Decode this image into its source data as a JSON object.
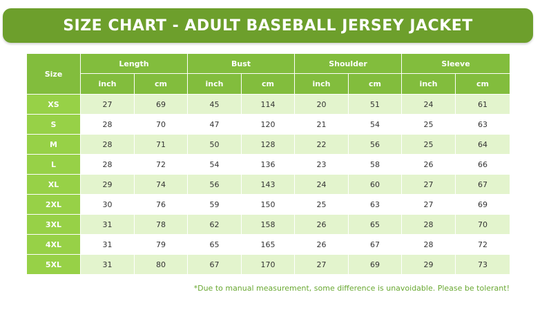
{
  "title": "SIZE CHART - ADULT BASEBALL JERSEY JACKET",
  "colors": {
    "banner": "#6d9f2c",
    "header": "#82bd3d",
    "size_column": "#97d147",
    "row_alt": "#e3f4cd",
    "note": "#69a832"
  },
  "table": {
    "size_header": "Size",
    "groups": [
      "Length",
      "Bust",
      "Shoulder",
      "Sleeve"
    ],
    "units": [
      "inch",
      "cm",
      "inch",
      "cm",
      "inch",
      "cm",
      "inch",
      "cm"
    ],
    "rows": [
      {
        "size": "XS",
        "values": [
          "27",
          "69",
          "45",
          "114",
          "20",
          "51",
          "24",
          "61"
        ]
      },
      {
        "size": "S",
        "values": [
          "28",
          "70",
          "47",
          "120",
          "21",
          "54",
          "25",
          "63"
        ]
      },
      {
        "size": "M",
        "values": [
          "28",
          "71",
          "50",
          "128",
          "22",
          "56",
          "25",
          "64"
        ]
      },
      {
        "size": "L",
        "values": [
          "28",
          "72",
          "54",
          "136",
          "23",
          "58",
          "26",
          "66"
        ]
      },
      {
        "size": "XL",
        "values": [
          "29",
          "74",
          "56",
          "143",
          "24",
          "60",
          "27",
          "67"
        ]
      },
      {
        "size": "2XL",
        "values": [
          "30",
          "76",
          "59",
          "150",
          "25",
          "63",
          "27",
          "69"
        ]
      },
      {
        "size": "3XL",
        "values": [
          "31",
          "78",
          "62",
          "158",
          "26",
          "65",
          "28",
          "70"
        ]
      },
      {
        "size": "4XL",
        "values": [
          "31",
          "79",
          "65",
          "165",
          "26",
          "67",
          "28",
          "72"
        ]
      },
      {
        "size": "5XL",
        "values": [
          "31",
          "80",
          "67",
          "170",
          "27",
          "69",
          "29",
          "73"
        ]
      }
    ]
  },
  "note": "*Due to manual measurement, some difference is unavoidable. Please be tolerant!"
}
